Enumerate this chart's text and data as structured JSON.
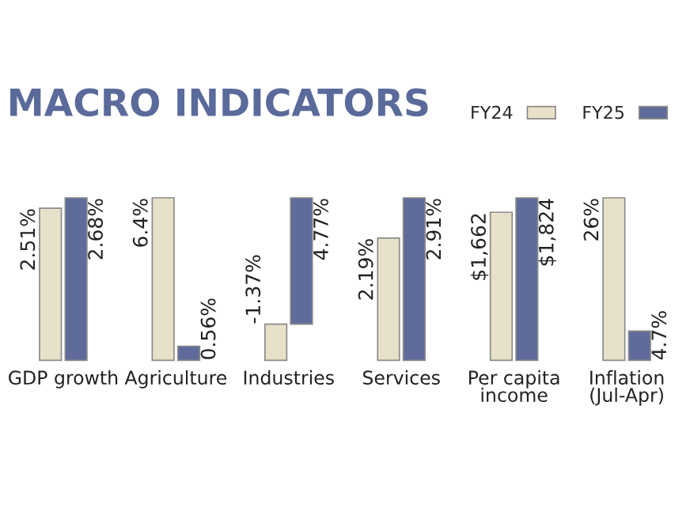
{
  "chart_data": [
    {
      "type": "bar",
      "title": "MACRO INDICATORS",
      "categories": [
        "GDP growth"
      ],
      "legend": "top right",
      "series": [
        {
          "name": "FY24",
          "color": "#e8e1c9",
          "values": [
            2.51
          ],
          "value_labels": [
            "2.51%"
          ]
        },
        {
          "name": "FY25",
          "color": "#5f6b9b",
          "values": [
            2.68
          ],
          "value_labels": [
            "2.68%"
          ]
        }
      ]
    },
    {
      "type": "bar",
      "categories": [
        "Agriculture"
      ],
      "series": [
        {
          "color": "#e8e1c9",
          "values": [
            6.4
          ],
          "value_labels": [
            "6.4%"
          ]
        },
        {
          "color": "#5f6b9b",
          "values": [
            0.56
          ],
          "value_labels": [
            "0.56%"
          ]
        }
      ]
    },
    {
      "type": "bar",
      "categories": [
        "Industries"
      ],
      "series": [
        {
          "color": "#e8e1c9",
          "values": [
            -1.37
          ],
          "value_labels": [
            "-1.37%"
          ]
        },
        {
          "color": "#5f6b9b",
          "values": [
            4.77
          ],
          "value_labels": [
            "4.77%"
          ]
        }
      ]
    },
    {
      "type": "bar",
      "categories": [
        "Services"
      ],
      "series": [
        {
          "color": "#e8e1c9",
          "values": [
            2.19
          ],
          "value_labels": [
            "2.19%"
          ]
        },
        {
          "color": "#5f6b9b",
          "values": [
            2.91
          ],
          "value_labels": [
            "2.91%"
          ]
        }
      ]
    },
    {
      "type": "bar",
      "categories": [
        "Per capita\nincome"
      ],
      "series": [
        {
          "color": "#e8e1c9",
          "values": [
            1662
          ],
          "value_labels": [
            "$1,662"
          ]
        },
        {
          "color": "#5f6b9b",
          "values": [
            1824
          ],
          "value_labels": [
            "$1,824"
          ]
        }
      ]
    },
    {
      "type": "bar",
      "categories": [
        "Inflation\n(Jul-Apr)"
      ],
      "series": [
        {
          "color": "#e8e1c9",
          "values": [
            26
          ],
          "value_labels": [
            "26%"
          ]
        },
        {
          "color": "#5f6b9b",
          "values": [
            4.7
          ],
          "value_labels": [
            "4.7%"
          ]
        }
      ]
    }
  ]
}
